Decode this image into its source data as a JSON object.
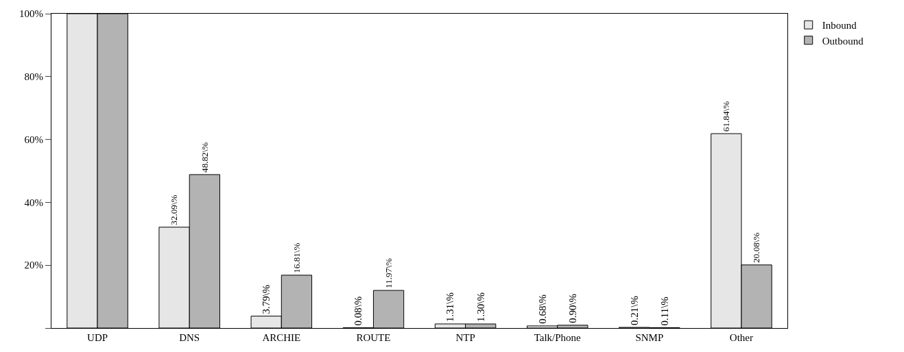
{
  "chart_data": {
    "type": "bar",
    "categories": [
      "UDP",
      "DNS",
      "ARCHIE",
      "ROUTE",
      "NTP",
      "Talk/Phone",
      "SNMP",
      "Other"
    ],
    "series": [
      {
        "name": "Inbound",
        "color": "#e6e6e6",
        "values": [
          100,
          32.09,
          3.79,
          0.08,
          1.31,
          0.68,
          0.21,
          61.84
        ],
        "value_labels": [
          null,
          "32.09\\%",
          "3.79\\%",
          "0.08\\%",
          "1.31\\%",
          "0.68\\%",
          "0.21\\%",
          "61.84\\%"
        ]
      },
      {
        "name": "Outbound",
        "color": "#b3b3b3",
        "values": [
          100,
          48.82,
          16.81,
          11.97,
          1.3,
          0.9,
          0.11,
          20.08
        ],
        "value_labels": [
          null,
          "48.82\\%",
          "16.81\\%",
          "11.97\\%",
          "1.30\\%",
          "0.90\\%",
          "0.11\\%",
          "20.08\\%"
        ]
      }
    ],
    "ylim": [
      0,
      100
    ],
    "yticks": [
      {
        "value": 0,
        "label": null
      },
      {
        "value": 20,
        "label": "20%"
      },
      {
        "value": 40,
        "label": "40%"
      },
      {
        "value": 60,
        "label": "60%"
      },
      {
        "value": 80,
        "label": "80%"
      },
      {
        "value": 100,
        "label": "100%"
      }
    ],
    "grid": false,
    "legend": "top right"
  }
}
